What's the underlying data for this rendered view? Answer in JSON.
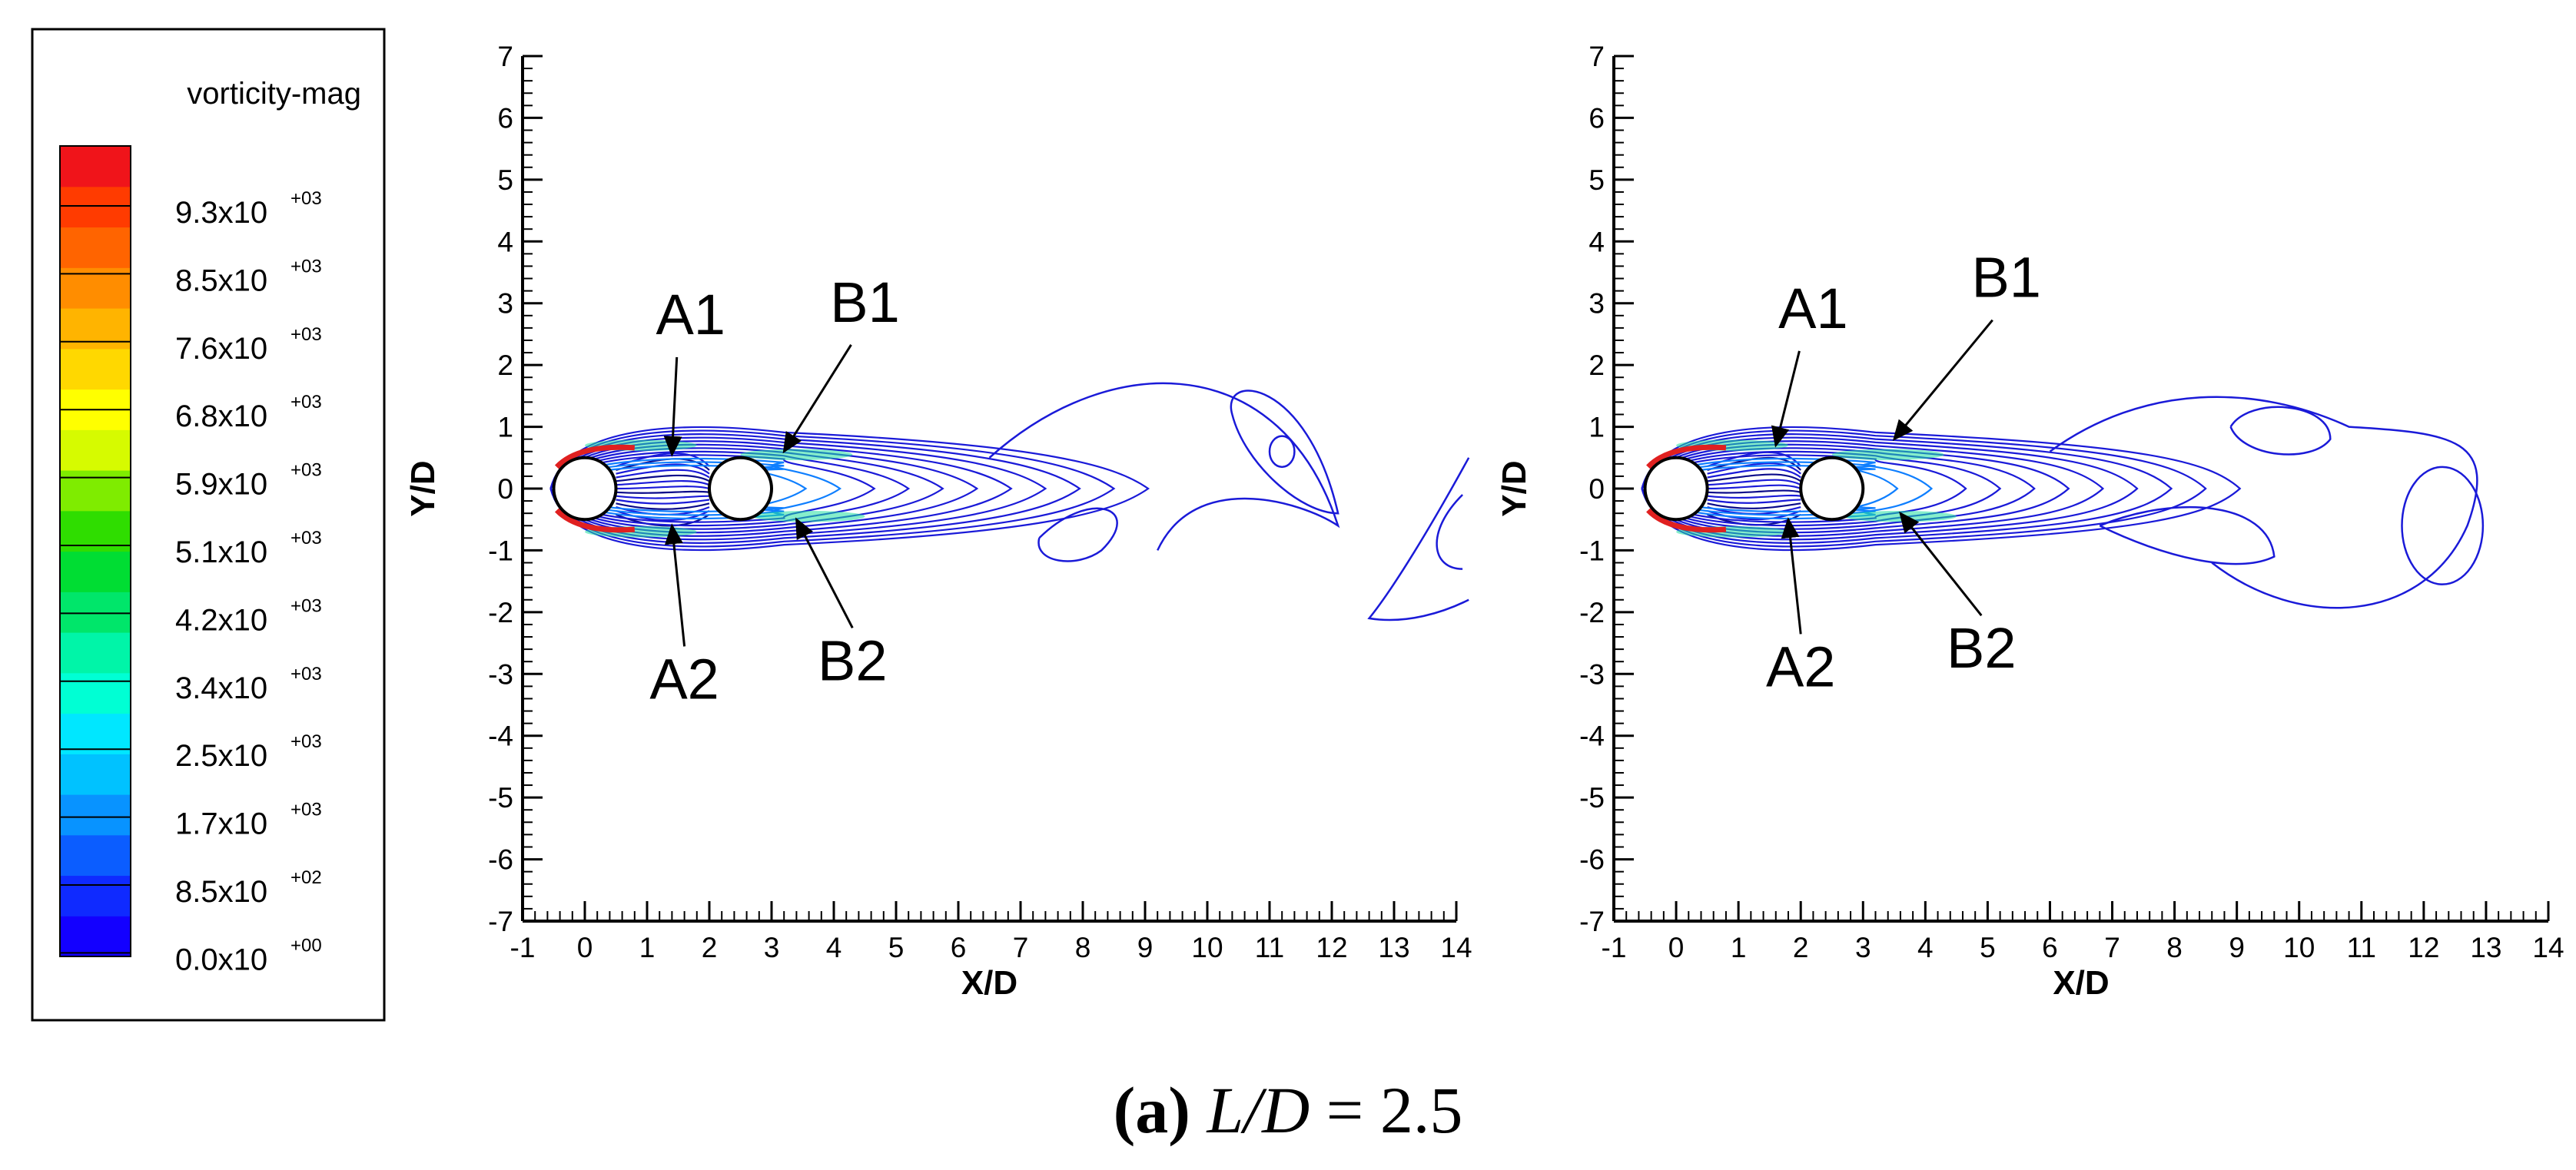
{
  "legend": {
    "title": "vorticity-mag",
    "colors": [
      "#1300ff",
      "#0f2aff",
      "#0b5dff",
      "#0893ff",
      "#00c2ff",
      "#00e7ff",
      "#00ffd4",
      "#00f5a8",
      "#00e66a",
      "#00dd33",
      "#2fdd00",
      "#7fec00",
      "#d6fb00",
      "#ffff00",
      "#ffd800",
      "#ffb400",
      "#ff8d00",
      "#ff6400",
      "#ff3b00",
      "#f0141a"
    ],
    "ticks": [
      {
        "mant": "9.3x10",
        "exp": "+03"
      },
      {
        "mant": "8.5x10",
        "exp": "+03"
      },
      {
        "mant": "7.6x10",
        "exp": "+03"
      },
      {
        "mant": "6.8x10",
        "exp": "+03"
      },
      {
        "mant": "5.9x10",
        "exp": "+03"
      },
      {
        "mant": "5.1x10",
        "exp": "+03"
      },
      {
        "mant": "4.2x10",
        "exp": "+03"
      },
      {
        "mant": "3.4x10",
        "exp": "+03"
      },
      {
        "mant": "2.5x10",
        "exp": "+03"
      },
      {
        "mant": "1.7x10",
        "exp": "+03"
      },
      {
        "mant": "8.5x10",
        "exp": "+02"
      },
      {
        "mant": "0.0x10",
        "exp": "+00"
      }
    ]
  },
  "caption": {
    "label": "(a)",
    "ratio": "L/D",
    "equals": " = ",
    "value": "2.5"
  },
  "chart_data": [
    {
      "type": "contour",
      "xlabel": "X/D",
      "ylabel": "Y/D",
      "xlim": [
        -1,
        14
      ],
      "ylim": [
        -7,
        7
      ],
      "xticks": [
        -1,
        0,
        1,
        2,
        3,
        4,
        5,
        6,
        7,
        8,
        9,
        10,
        11,
        12,
        13,
        14
      ],
      "yticks": [
        -7,
        -6,
        -5,
        -4,
        -3,
        -2,
        -1,
        0,
        1,
        2,
        3,
        4,
        5,
        6,
        7
      ],
      "cylinders": [
        {
          "x": 0,
          "y": 0
        },
        {
          "x": 2.5,
          "y": 0
        }
      ],
      "annotations": [
        {
          "text": "A1",
          "label_at": [
            1.7,
            2.5
          ],
          "points_to": [
            1.4,
            0.55
          ]
        },
        {
          "text": "B1",
          "label_at": [
            4.5,
            2.7
          ],
          "points_to": [
            3.2,
            0.6
          ]
        },
        {
          "text": "A2",
          "label_at": [
            1.6,
            -3.4
          ],
          "points_to": [
            1.4,
            -0.6
          ]
        },
        {
          "text": "B2",
          "label_at": [
            4.3,
            -3.1
          ],
          "points_to": [
            3.4,
            -0.5
          ]
        }
      ]
    },
    {
      "type": "contour",
      "xlabel": "X/D",
      "ylabel": "Y/D",
      "xlim": [
        -1,
        14
      ],
      "ylim": [
        -7,
        7
      ],
      "xticks": [
        -1,
        0,
        1,
        2,
        3,
        4,
        5,
        6,
        7,
        8,
        9,
        10,
        11,
        12,
        13,
        14
      ],
      "yticks": [
        -7,
        -6,
        -5,
        -4,
        -3,
        -2,
        -1,
        0,
        1,
        2,
        3,
        4,
        5,
        6,
        7
      ],
      "cylinders": [
        {
          "x": 0,
          "y": 0
        },
        {
          "x": 2.5,
          "y": 0
        }
      ],
      "annotations": [
        {
          "text": "A1",
          "label_at": [
            2.2,
            2.6
          ],
          "points_to": [
            1.6,
            0.7
          ]
        },
        {
          "text": "B1",
          "label_at": [
            5.3,
            3.1
          ],
          "points_to": [
            3.5,
            0.8
          ]
        },
        {
          "text": "A2",
          "label_at": [
            2.0,
            -3.2
          ],
          "points_to": [
            1.8,
            -0.5
          ]
        },
        {
          "text": "B2",
          "label_at": [
            4.9,
            -2.9
          ],
          "points_to": [
            3.6,
            -0.4
          ]
        }
      ]
    }
  ]
}
